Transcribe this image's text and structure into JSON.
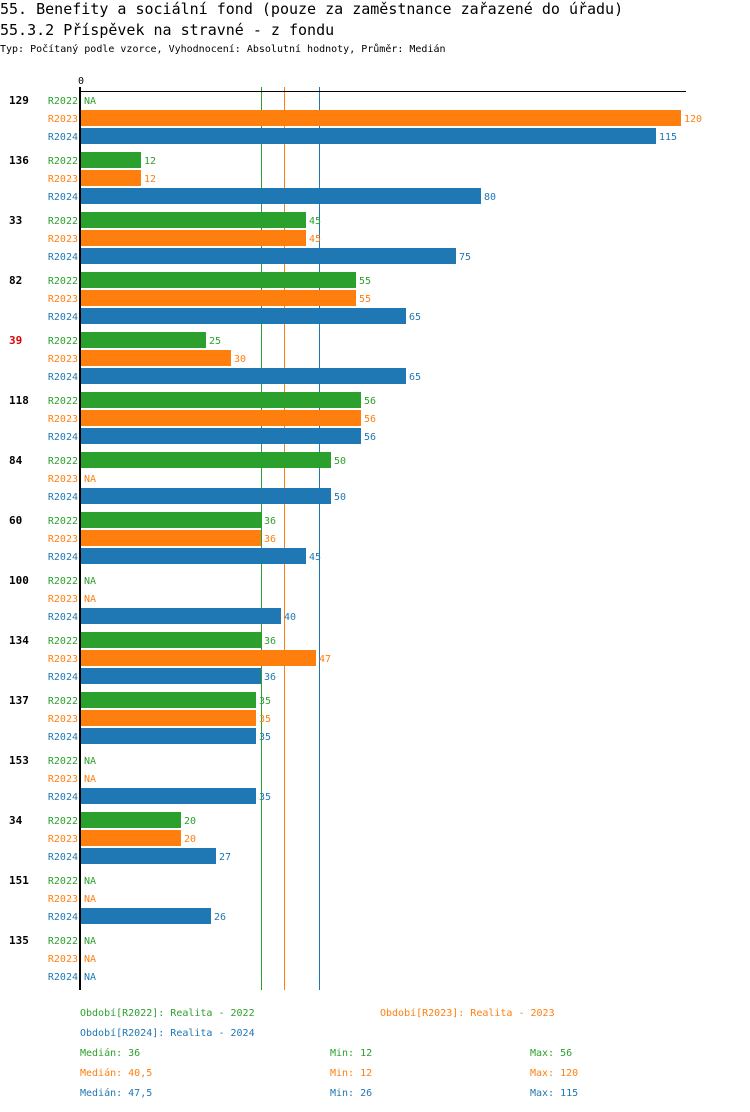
{
  "header": {
    "title": "55. Benefity a sociální fond (pouze za zaměstnance zařazené do úřadu)",
    "subtitle": "55.3.2 Příspěvek na stravné - z fondu",
    "info": "Typ: Počítaný podle vzorce, Vyhodnocení: Absolutní hodnoty, Průměr: Medián"
  },
  "colors": {
    "R2022": "#2ca02c",
    "R2023": "#ff7f0e",
    "R2024": "#1f77b4",
    "highlight": "#dd0000",
    "axis": "#000000"
  },
  "chart_data": {
    "type": "bar",
    "orientation": "horizontal",
    "title": "55.3.2 Příspěvek na stravné - z fondu",
    "xlabel": "",
    "ylabel": "",
    "xlim": [
      0,
      120
    ],
    "x_tick_labels": [
      "0"
    ],
    "grid": false,
    "legend_position": "bottom",
    "categories": [
      "129",
      "136",
      "33",
      "82",
      "39",
      "118",
      "84",
      "60",
      "100",
      "134",
      "137",
      "153",
      "34",
      "151",
      "135"
    ],
    "highlighted_category": "39",
    "series": [
      {
        "name": "R2022",
        "values": [
          null,
          12,
          45,
          55,
          25,
          56,
          50,
          36,
          null,
          36,
          35,
          null,
          20,
          null,
          null
        ]
      },
      {
        "name": "R2023",
        "values": [
          120,
          12,
          45,
          55,
          30,
          56,
          null,
          36,
          null,
          47,
          35,
          null,
          20,
          null,
          null
        ]
      },
      {
        "name": "R2024",
        "values": [
          115,
          80,
          75,
          65,
          65,
          56,
          50,
          45,
          40,
          36,
          35,
          35,
          27,
          26,
          null
        ]
      }
    ],
    "na_label": "NA",
    "reference_lines": [
      {
        "series": "R2022",
        "type": "median",
        "value": 36
      },
      {
        "series": "R2023",
        "type": "median",
        "value": 40.5
      },
      {
        "series": "R2024",
        "type": "median",
        "value": 47.5
      }
    ]
  },
  "legend": {
    "items": [
      {
        "series": "R2022",
        "label": "Období[R2022]: Realita - 2022"
      },
      {
        "series": "R2023",
        "label": "Období[R2023]: Realita - 2023"
      },
      {
        "series": "R2024",
        "label": "Období[R2024]: Realita - 2024"
      }
    ]
  },
  "stats": [
    {
      "series": "R2022",
      "median": "Medián: 36",
      "min": "Min: 12",
      "max": "Max: 56"
    },
    {
      "series": "R2023",
      "median": "Medián: 40,5",
      "min": "Min: 12",
      "max": "Max: 120"
    },
    {
      "series": "R2024",
      "median": "Medián: 47,5",
      "min": "Min: 26",
      "max": "Max: 115"
    }
  ]
}
